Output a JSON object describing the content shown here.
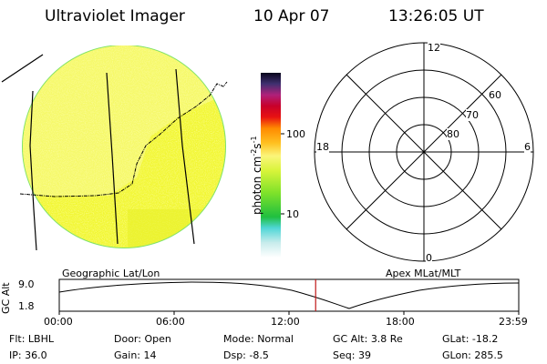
{
  "header": {
    "instrument": "Ultraviolet Imager",
    "date": "10 Apr 07",
    "time": "13:26:05 UT"
  },
  "colorbar": {
    "unit_label": "photon cm",
    "unit_sup1": "-2",
    "unit_s": "s",
    "unit_sup2": "-1",
    "ticks": [
      "100",
      "10"
    ]
  },
  "polar_plot": {
    "mlt_labels": {
      "top": "12",
      "bottom": "0",
      "left": "18",
      "right": "6"
    },
    "lat_labels": [
      "60",
      "70",
      "80"
    ]
  },
  "timeline": {
    "y_axis_label": "GC Alt",
    "y_ticks": [
      "9.0",
      "1.8"
    ],
    "left_title": "Geographic Lat/Lon",
    "right_title": "Apex MLat/MLT",
    "x_ticks": [
      "00:00",
      "06:00",
      "12:00",
      "18:00",
      "23:59"
    ],
    "current_time_fraction": 0.558
  },
  "info": {
    "filter": {
      "label": "Flt:",
      "value": "LBHL"
    },
    "door": {
      "label": "Door:",
      "value": "Open"
    },
    "mode": {
      "label": "Mode:",
      "value": "Normal"
    },
    "gc_alt": {
      "label": "GC Alt:",
      "value": "3.8 Re"
    },
    "glat": {
      "label": "GLat:",
      "value": "-18.2"
    },
    "ip": {
      "label": "IP:",
      "value": "36.0"
    },
    "gain": {
      "label": "Gain:",
      "value": "14"
    },
    "dsp": {
      "label": "Dsp:",
      "value": "-8.5"
    },
    "seq": {
      "label": "Seq:",
      "value": "39"
    },
    "glon": {
      "label": "GLon:",
      "value": "285.5"
    }
  }
}
